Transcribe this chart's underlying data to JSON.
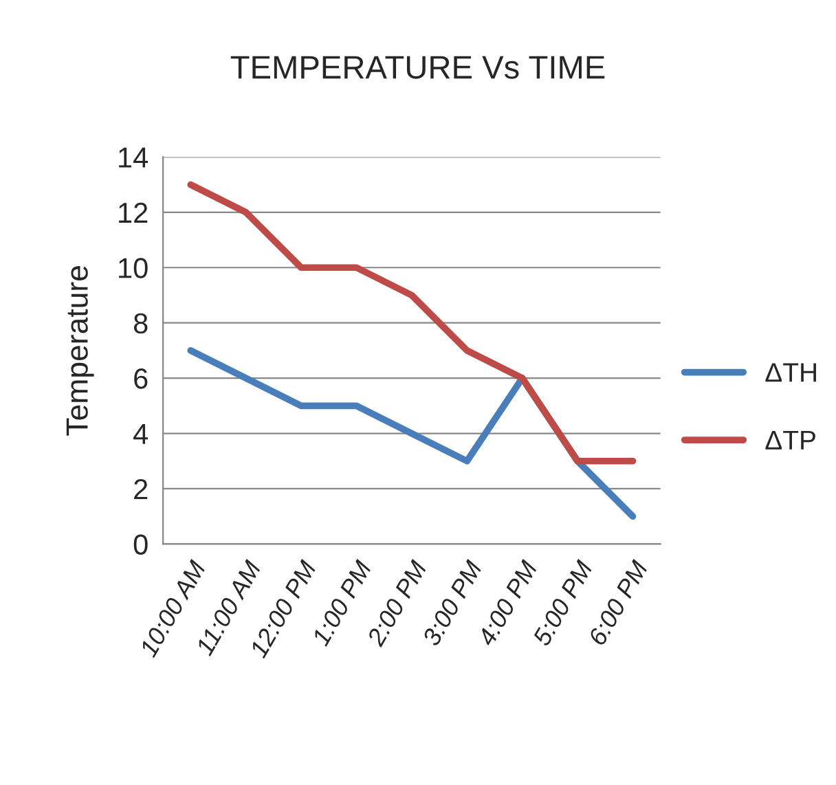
{
  "chart_data": {
    "type": "line",
    "title": "TEMPERATURE Vs TIME",
    "ylabel": "Temperature",
    "categories": [
      "10:00 AM",
      "11:00 AM",
      "12:00 PM",
      "1:00 PM",
      "2:00 PM",
      "3:00 PM",
      "4:00 PM",
      "5:00 PM",
      "6:00 PM"
    ],
    "series": [
      {
        "name": "ΔTH",
        "color": "#4a7ebb",
        "values": [
          7,
          6,
          5,
          5,
          4,
          3,
          6,
          3,
          1
        ]
      },
      {
        "name": "ΔTP",
        "color": "#be4b48",
        "values": [
          13,
          12,
          10,
          10,
          9,
          7,
          6,
          3,
          3
        ]
      }
    ],
    "ylim": [
      0,
      14
    ],
    "yticks": [
      0,
      2,
      4,
      6,
      8,
      10,
      12,
      14
    ],
    "grid": "y",
    "legend": "right",
    "marker": "none",
    "line_style": "solid"
  }
}
